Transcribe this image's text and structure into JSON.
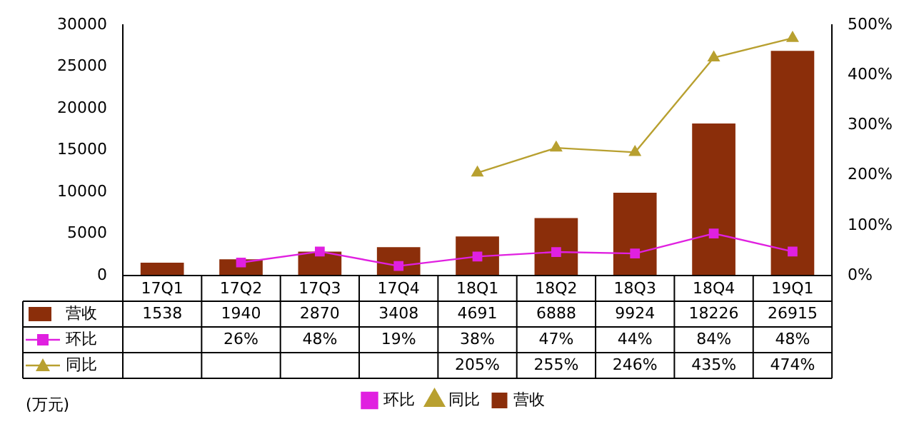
{
  "chart_data": {
    "type": "bar",
    "categories": [
      "17Q1",
      "17Q2",
      "17Q3",
      "17Q4",
      "18Q1",
      "18Q2",
      "18Q3",
      "18Q4",
      "19Q1"
    ],
    "series": [
      {
        "name": "营收",
        "color": "#8b2e0a",
        "values": [
          1538,
          1940,
          2870,
          3408,
          4691,
          6888,
          9924,
          18226,
          26915
        ],
        "value_labels": [
          "1538",
          "1940",
          "2870",
          "3408",
          "4691",
          "6888",
          "9924",
          "18226",
          "26915"
        ]
      },
      {
        "name": "环比",
        "type": "line",
        "axis": "y2",
        "marker": "square",
        "color": "#e020e0",
        "values": [
          null,
          26,
          48,
          19,
          38,
          47,
          44,
          84,
          48
        ],
        "value_labels": [
          null,
          "26%",
          "48%",
          "19%",
          "38%",
          "47%",
          "44%",
          "84%",
          "48%"
        ]
      },
      {
        "name": "同比",
        "type": "line",
        "axis": "y2",
        "marker": "triangle",
        "color": "#b8a030",
        "values": [
          null,
          null,
          null,
          null,
          205,
          255,
          246,
          435,
          474
        ],
        "value_labels": [
          null,
          null,
          null,
          null,
          "205%",
          "255%",
          "246%",
          "435%",
          "474%"
        ]
      }
    ],
    "ylim": [
      0,
      30000
    ],
    "yticks": [
      0,
      5000,
      10000,
      15000,
      20000,
      25000,
      30000
    ],
    "y2lim": [
      0,
      500
    ],
    "y2ticks": [
      {
        "value": 0,
        "label": "0%"
      },
      {
        "value": 100,
        "label": "100%"
      },
      {
        "value": 200,
        "label": "200%"
      },
      {
        "value": 300,
        "label": "300%"
      },
      {
        "value": 400,
        "label": "400%"
      },
      {
        "value": 500,
        "label": "500%"
      }
    ],
    "legend": "bottom",
    "annotations": [
      "(万元)"
    ]
  }
}
